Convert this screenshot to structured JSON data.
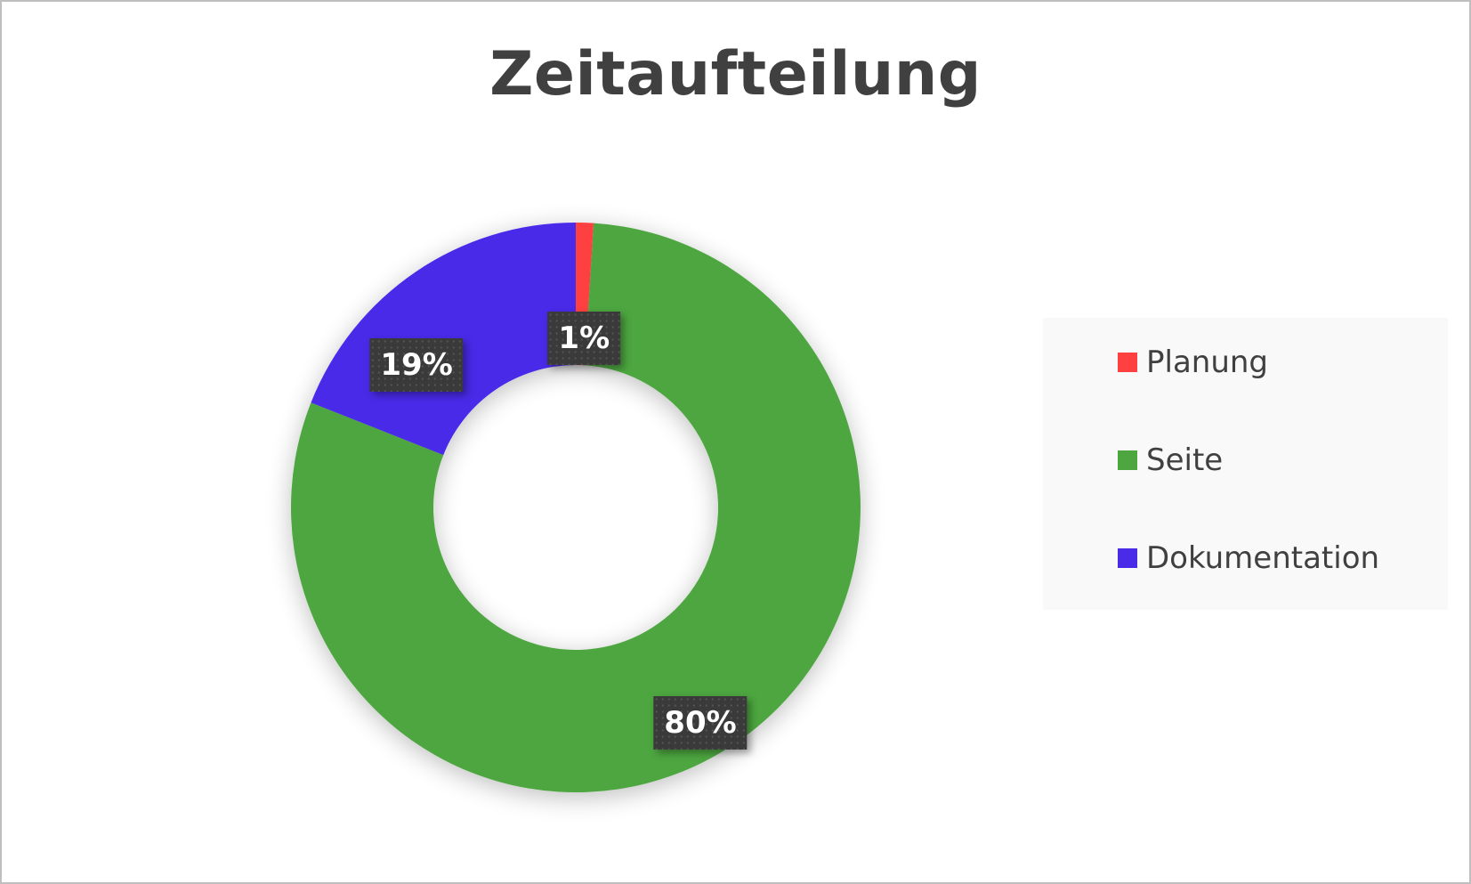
{
  "chart_data": {
    "type": "pie",
    "variant": "doughnut",
    "title": "Zeitaufteilung",
    "categories": [
      "Planung",
      "Seite",
      "Dokumentation"
    ],
    "values": [
      1,
      80,
      19
    ],
    "labels": [
      "1%",
      "80%",
      "19%"
    ],
    "colors": [
      "#ff4040",
      "#4ea641",
      "#4a2be8"
    ],
    "legend_position": "right"
  }
}
